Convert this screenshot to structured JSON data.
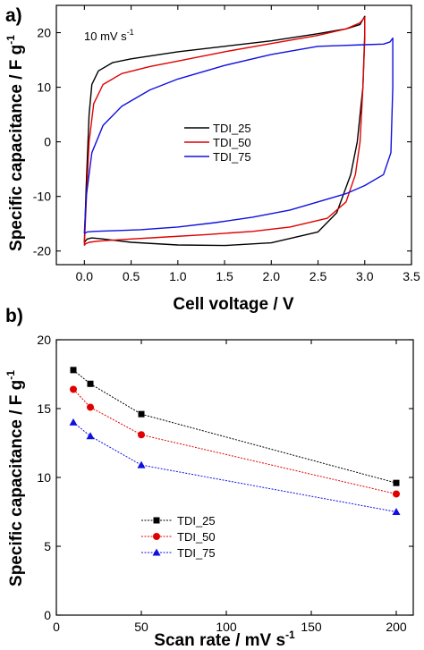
{
  "colors": {
    "black": "#000000",
    "red": "#e00000",
    "blue": "#1010e0"
  },
  "chart_data": [
    {
      "panel": "a)",
      "type": "line",
      "annotation": "10 mV s",
      "annotation_sup": "-1",
      "xlabel": "Cell voltage / V",
      "ylabel": "Specific capacitance / F g",
      "ylabel_sup": "-1",
      "xlim": [
        -0.3,
        3.5
      ],
      "ylim": [
        -22.5,
        25
      ],
      "xticks": [
        0.0,
        0.5,
        1.0,
        1.5,
        2.0,
        2.5,
        3.0,
        3.5
      ],
      "xtick_labels": [
        "0.0",
        "0.5",
        "1.0",
        "1.5",
        "2.0",
        "2.5",
        "3.0",
        "3.5"
      ],
      "yticks": [
        -20,
        -10,
        0,
        10,
        20
      ],
      "ytick_labels": [
        "-20",
        "-10",
        "0",
        "10",
        "20"
      ],
      "legend_position": "center",
      "series": [
        {
          "name": "TDI_25",
          "color": "#000000",
          "x": [
            0.0,
            0.02,
            0.05,
            0.08,
            0.15,
            0.3,
            0.5,
            1.0,
            1.5,
            2.0,
            2.5,
            2.8,
            2.95,
            3.0,
            3.0,
            2.98,
            2.92,
            2.85,
            2.7,
            2.5,
            2.0,
            1.5,
            1.0,
            0.5,
            0.2,
            0.08,
            0.03,
            0.01,
            0.0
          ],
          "y": [
            -18.5,
            -8.0,
            5.0,
            10.5,
            13.0,
            14.5,
            15.2,
            16.5,
            17.5,
            18.5,
            19.8,
            20.7,
            21.5,
            23.0,
            20.0,
            10.0,
            0.0,
            -6.0,
            -13.0,
            -16.5,
            -18.5,
            -19.0,
            -18.9,
            -18.4,
            -17.8,
            -17.6,
            -17.8,
            -18.2,
            -18.5
          ]
        },
        {
          "name": "TDI_50",
          "color": "#e00000",
          "x": [
            0.0,
            0.02,
            0.05,
            0.1,
            0.2,
            0.4,
            0.7,
            1.0,
            1.5,
            2.0,
            2.5,
            2.8,
            2.95,
            3.0,
            3.0,
            2.98,
            2.95,
            2.9,
            2.8,
            2.6,
            2.2,
            1.8,
            1.3,
            0.8,
            0.4,
            0.15,
            0.05,
            0.01,
            0.0
          ],
          "y": [
            -19.0,
            -11.0,
            0.0,
            7.0,
            10.5,
            12.5,
            13.8,
            14.8,
            16.5,
            18.0,
            19.5,
            20.7,
            21.8,
            22.8,
            19.0,
            10.0,
            0.0,
            -6.0,
            -11.0,
            -14.0,
            -15.6,
            -16.4,
            -17.0,
            -17.5,
            -17.9,
            -18.2,
            -18.4,
            -18.7,
            -19.0
          ]
        },
        {
          "name": "TDI_75",
          "color": "#1010e0",
          "x": [
            0.0,
            0.02,
            0.08,
            0.2,
            0.4,
            0.7,
            1.0,
            1.5,
            2.0,
            2.5,
            3.0,
            3.2,
            3.27,
            3.3,
            3.3,
            3.28,
            3.2,
            3.0,
            2.8,
            2.5,
            2.2,
            1.8,
            1.4,
            1.0,
            0.6,
            0.3,
            0.1,
            0.03,
            0.0
          ],
          "y": [
            -16.8,
            -10.0,
            -2.0,
            3.0,
            6.5,
            9.5,
            11.5,
            14.0,
            16.0,
            17.5,
            17.8,
            17.9,
            18.3,
            19.0,
            10.0,
            -2.0,
            -6.0,
            -8.0,
            -9.5,
            -11.0,
            -12.5,
            -13.8,
            -14.8,
            -15.6,
            -16.1,
            -16.3,
            -16.4,
            -16.5,
            -16.8
          ]
        }
      ]
    },
    {
      "panel": "b)",
      "type": "line",
      "xlabel": "Scan rate / mV s",
      "xlabel_sup": "-1",
      "ylabel": "Specific capacitance / F g",
      "ylabel_sup": "-1",
      "xlim": [
        0,
        210
      ],
      "ylim": [
        0,
        20
      ],
      "xticks": [
        0,
        50,
        100,
        150,
        200
      ],
      "xtick_labels": [
        "0",
        "50",
        "100",
        "150",
        "200"
      ],
      "yticks": [
        0,
        5,
        10,
        15,
        20
      ],
      "ytick_labels": [
        "0",
        "5",
        "10",
        "15",
        "20"
      ],
      "legend_position": "bottom-left",
      "x": [
        10,
        20,
        50,
        200
      ],
      "series": [
        {
          "name": "TDI_25",
          "color": "#000000",
          "marker": "square",
          "values": [
            17.8,
            16.8,
            14.6,
            9.6
          ]
        },
        {
          "name": "TDI_50",
          "color": "#e00000",
          "marker": "circle",
          "values": [
            16.4,
            15.1,
            13.1,
            8.8
          ]
        },
        {
          "name": "TDI_75",
          "color": "#1010e0",
          "marker": "triangle",
          "values": [
            14.0,
            13.0,
            10.9,
            7.5
          ]
        }
      ]
    }
  ]
}
